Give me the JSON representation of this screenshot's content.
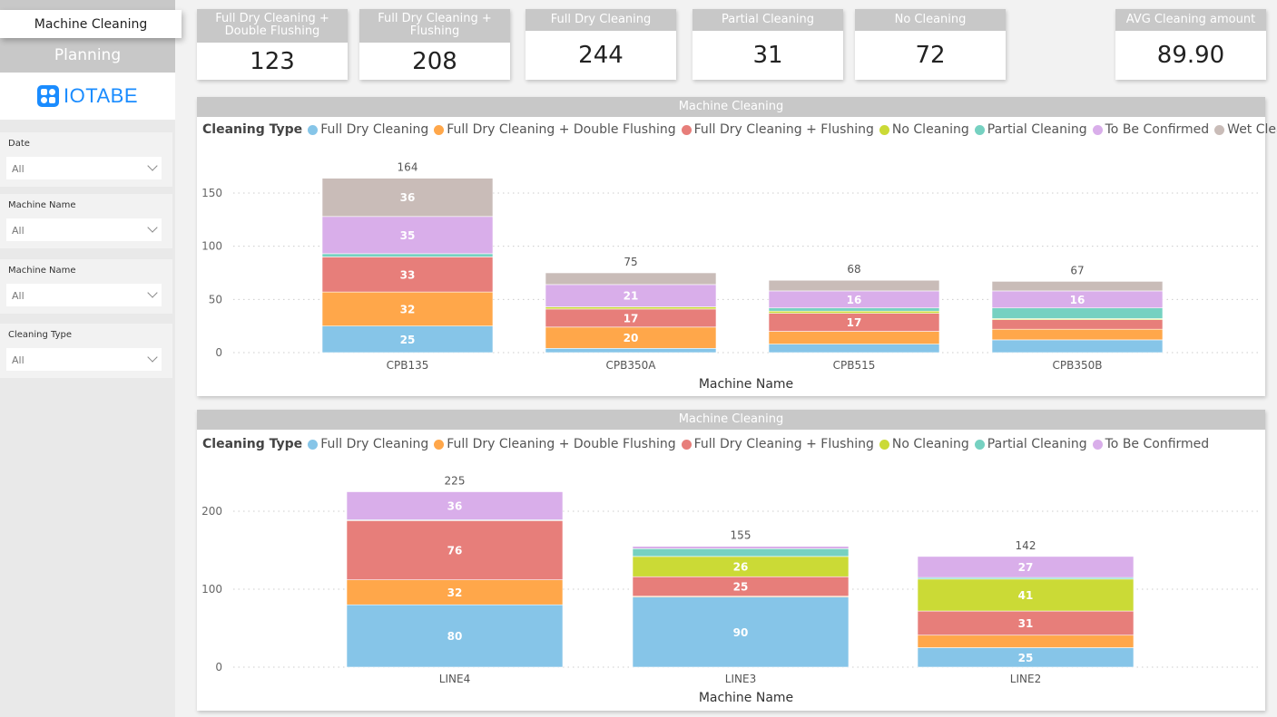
{
  "nav": {
    "active_page": "Machine Cleaning",
    "section": "Planning",
    "logo_text": "IOTABE"
  },
  "slicers": [
    {
      "label": "Date",
      "value": "All"
    },
    {
      "label": "Machine Name",
      "value": "All"
    },
    {
      "label": "Machine Name",
      "value": "All"
    },
    {
      "label": "Cleaning Type",
      "value": "All"
    }
  ],
  "cards": [
    {
      "title": "Full Dry Cleaning + Double Flushing",
      "value": "123"
    },
    {
      "title": "Full Dry Cleaning + Flushing",
      "value": "208"
    },
    {
      "title": "Full Dry Cleaning",
      "value": "244"
    },
    {
      "title": "Partial Cleaning",
      "value": "31"
    },
    {
      "title": "No Cleaning",
      "value": "72"
    },
    {
      "title": "AVG Cleaning amount",
      "value": "89.90"
    }
  ],
  "colors": {
    "Full Dry Cleaning": "#86C5E8",
    "Full Dry Cleaning + Double Flushing": "#FFA74A",
    "Full Dry Cleaning + Flushing": "#E77E7A",
    "No Cleaning": "#CBDA36",
    "Partial Cleaning": "#76D1C1",
    "To Be Confirmed": "#D9AEEA",
    "Wet Cleaning": "#C9BCB8"
  },
  "chart_data": [
    {
      "type": "bar",
      "stacked": true,
      "title": "Machine Cleaning",
      "legend_title": "Cleaning Type",
      "legend_position": "top-left",
      "xlabel": "Machine Name",
      "ylabel": "",
      "ylim": [
        0,
        170
      ],
      "yticks": [
        0,
        50,
        100,
        150
      ],
      "grid": true,
      "categories": [
        "CPB135",
        "CPB350A",
        "CPB515",
        "CPB350B"
      ],
      "totals": [
        164,
        75,
        68,
        67
      ],
      "series": [
        {
          "name": "Full Dry Cleaning",
          "values": [
            25,
            4,
            8,
            12
          ]
        },
        {
          "name": "Full Dry Cleaning + Double Flushing",
          "values": [
            32,
            20,
            12,
            10
          ]
        },
        {
          "name": "Full Dry Cleaning + Flushing",
          "values": [
            33,
            17,
            17,
            9
          ]
        },
        {
          "name": "No Cleaning",
          "values": [
            0,
            2,
            2,
            1
          ]
        },
        {
          "name": "Partial Cleaning",
          "values": [
            3,
            0,
            3,
            10
          ]
        },
        {
          "name": "To Be Confirmed",
          "values": [
            35,
            21,
            16,
            16
          ]
        },
        {
          "name": "Wet Cleaning",
          "values": [
            36,
            11,
            10,
            9
          ]
        }
      ]
    },
    {
      "type": "bar",
      "stacked": true,
      "title": "Machine Cleaning",
      "legend_title": "Cleaning Type",
      "legend_position": "top-left",
      "xlabel": "Machine Name",
      "ylabel": "",
      "ylim": [
        0,
        235
      ],
      "yticks": [
        0,
        100,
        200
      ],
      "grid": true,
      "categories": [
        "LINE4",
        "LINE3",
        "LINE2"
      ],
      "totals": [
        225,
        155,
        142
      ],
      "series": [
        {
          "name": "Full Dry Cleaning",
          "values": [
            80,
            90,
            25
          ]
        },
        {
          "name": "Full Dry Cleaning + Double Flushing",
          "values": [
            32,
            1,
            16
          ]
        },
        {
          "name": "Full Dry Cleaning + Flushing",
          "values": [
            76,
            25,
            31
          ]
        },
        {
          "name": "No Cleaning",
          "values": [
            0,
            26,
            41
          ]
        },
        {
          "name": "Partial Cleaning",
          "values": [
            1,
            10,
            2
          ]
        },
        {
          "name": "To Be Confirmed",
          "values": [
            36,
            3,
            27
          ]
        }
      ]
    }
  ]
}
